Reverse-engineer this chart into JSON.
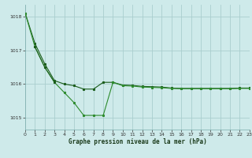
{
  "background_color": "#ceeaea",
  "grid_color": "#aacece",
  "line_color_dark": "#1a5c1a",
  "line_color_medium": "#2d8b2d",
  "xlabel": "Graphe pression niveau de la mer (hPa)",
  "xlim": [
    0,
    23
  ],
  "ylim": [
    1014.65,
    1018.35
  ],
  "yticks": [
    1015,
    1016,
    1017,
    1018
  ],
  "xticks": [
    0,
    1,
    2,
    3,
    4,
    5,
    6,
    7,
    8,
    9,
    10,
    11,
    12,
    13,
    14,
    15,
    16,
    17,
    18,
    19,
    20,
    21,
    22,
    23
  ],
  "series1_x": [
    0,
    1,
    2,
    3,
    4,
    5,
    6,
    7,
    8,
    9,
    10,
    11,
    12,
    13,
    14,
    15,
    16,
    17,
    18,
    19,
    20,
    21,
    22,
    23
  ],
  "series1_y": [
    1018.1,
    1017.2,
    1016.6,
    1016.1,
    1016.0,
    1015.95,
    1015.85,
    1015.85,
    1016.05,
    1016.05,
    1015.97,
    1015.96,
    1015.93,
    1015.92,
    1015.91,
    1015.88,
    1015.87,
    1015.87,
    1015.87,
    1015.87,
    1015.87,
    1015.87,
    1015.88,
    1015.88
  ],
  "series2_x": [
    0,
    1,
    2,
    3,
    4,
    5,
    6,
    7,
    8,
    9,
    10,
    11,
    12,
    13,
    14,
    15,
    16,
    17,
    18,
    19,
    20,
    21,
    22,
    23
  ],
  "series2_y": [
    1018.1,
    1017.1,
    1016.5,
    1016.05,
    1015.75,
    1015.45,
    1015.07,
    1015.07,
    1015.07,
    1016.05,
    1015.95,
    1015.94,
    1015.91,
    1015.9,
    1015.89,
    1015.87,
    1015.86,
    1015.86,
    1015.86,
    1015.86,
    1015.86,
    1015.86,
    1015.87,
    1015.87
  ],
  "series3_x": [
    1,
    2,
    3
  ],
  "series3_y": [
    1017.1,
    1016.5,
    1016.05
  ]
}
